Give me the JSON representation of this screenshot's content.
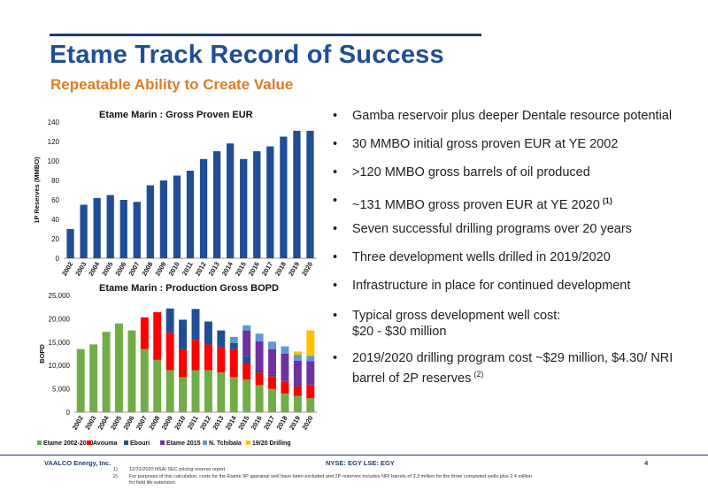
{
  "header": {
    "title": "Etame Track Record of Success",
    "subtitle": "Repeatable Ability to Create Value"
  },
  "colors": {
    "title": "#1f4e96",
    "subtitle": "#e07b22",
    "bar_blue": "#1f4e96"
  },
  "chart_data": [
    {
      "type": "bar",
      "title": "Etame Marin : Gross Proven EUR",
      "ylabel": "1P Reserves (MMBO)",
      "xlabel": "",
      "ylim": [
        0,
        140
      ],
      "yticks": [
        0,
        20,
        40,
        60,
        80,
        100,
        120,
        140
      ],
      "categories": [
        "2002",
        "2003",
        "2004",
        "2005",
        "2006",
        "2007",
        "2008",
        "2009",
        "2010",
        "2011",
        "2012",
        "2013",
        "2014",
        "2015",
        "2016",
        "2017",
        "2018",
        "2019",
        "2020"
      ],
      "values": [
        30,
        55,
        62,
        65,
        60,
        58,
        75,
        80,
        85,
        90,
        102,
        110,
        118,
        102,
        110,
        115,
        125,
        131,
        131
      ],
      "grid": false
    },
    {
      "type": "bar",
      "stacked": true,
      "title": "Etame Marin : Production Gross BOPD",
      "ylabel": "BOPD",
      "xlabel": "",
      "ylim": [
        0,
        25000
      ],
      "yticks": [
        "0",
        "5,000",
        "10,000",
        "15,000",
        "20,000",
        "25,000"
      ],
      "categories": [
        "2002",
        "2003",
        "2004",
        "2005",
        "2006",
        "2007",
        "2008",
        "2009",
        "2010",
        "2011",
        "2012",
        "2013",
        "2014",
        "2015",
        "2016",
        "2017",
        "2018",
        "2019",
        "2020"
      ],
      "legend_position": "bottom",
      "grid": false,
      "series": [
        {
          "name": "Etame 2002-2010",
          "color": "#70ad47",
          "values": [
            13500,
            14500,
            17200,
            19000,
            17500,
            13500,
            11200,
            9000,
            7500,
            9000,
            9000,
            8500,
            7500,
            7000,
            5800,
            5000,
            4000,
            3500,
            3000
          ]
        },
        {
          "name": "Avouma",
          "color": "#ff0000",
          "values": [
            0,
            0,
            0,
            0,
            0,
            6800,
            10200,
            8000,
            6000,
            6500,
            5500,
            5500,
            6000,
            3500,
            2700,
            2700,
            2500,
            2000,
            2800
          ]
        },
        {
          "name": "Ebouri",
          "color": "#1f4e96",
          "values": [
            0,
            0,
            0,
            0,
            0,
            0,
            0,
            5200,
            6300,
            6600,
            4900,
            3500,
            1300,
            1500,
            400,
            300,
            200,
            100,
            100
          ]
        },
        {
          "name": "Etame 2015",
          "color": "#7030a0",
          "values": [
            0,
            0,
            0,
            0,
            0,
            0,
            0,
            0,
            0,
            0,
            0,
            0,
            0,
            5500,
            6300,
            5500,
            5800,
            5400,
            5000
          ]
        },
        {
          "name": "N. Tchibala",
          "color": "#5b9bd5",
          "values": [
            0,
            0,
            0,
            0,
            0,
            0,
            0,
            0,
            0,
            0,
            0,
            0,
            1300,
            1100,
            1600,
            1600,
            1600,
            1300,
            1200
          ]
        },
        {
          "name": "19/20 Drilling",
          "color": "#ffc000",
          "values": [
            0,
            0,
            0,
            0,
            0,
            0,
            0,
            0,
            0,
            0,
            0,
            0,
            0,
            0,
            0,
            0,
            0,
            700,
            5400
          ]
        }
      ]
    }
  ],
  "bullets": [
    [
      "Gamba reservoir plus deeper Dentale resource potential"
    ],
    [
      "30 MMBO initial gross proven EUR at YE 2002"
    ],
    [
      ">120 MMBO gross barrels of oil produced"
    ],
    [
      "~131 MMBO gross proven EUR at YE 2020"
    ],
    [
      "Seven successful drilling programs over 20 years"
    ],
    [
      "Three development wells drilled in 2019/2020"
    ],
    [
      "Infrastructure in place for continued development"
    ],
    [
      "Typical gross development well cost:",
      "$20 - $30 million"
    ],
    [
      "2019/2020 drilling program cost ~$29 million, $4.30/ NRI",
      "barrel of 2P reserves"
    ]
  ],
  "bullet_superscripts": {
    "3": "(1)",
    "8": "(2)"
  },
  "footer": {
    "company": "VAALCO Energy, Inc.",
    "tickers": "NYSE: EGY    LSE: EGY",
    "page": "4",
    "footnote_1_num": "1)",
    "footnote_1": "12/31/2020 NSAI SEC pricing reserve report",
    "footnote_2_num": "2)",
    "footnote_2": "For purposes of this calculation, costs for the Etame 9P appraisal well have been excluded and 2P reserves includes NRI barrels of 3.3 million for the three completed wells plus 2.4 million",
    "footnote_2b": "for field life extension."
  }
}
